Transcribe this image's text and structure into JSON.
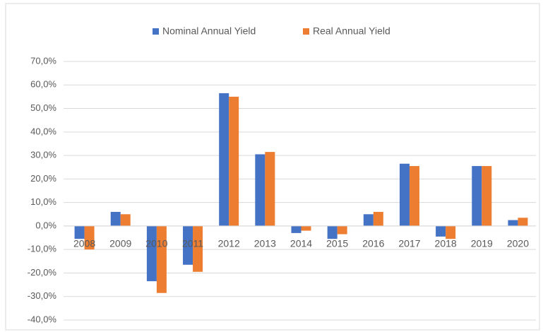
{
  "chart_data": {
    "type": "bar",
    "categories": [
      "2008",
      "2009",
      "2010",
      "2011",
      "2012",
      "2013",
      "2014",
      "2015",
      "2016",
      "2017",
      "2018",
      "2019",
      "2020"
    ],
    "series": [
      {
        "name": "Nominal Annual Yield",
        "color": "#4472c4",
        "values": [
          -5.5,
          6,
          -23.5,
          -16.5,
          56.5,
          30.5,
          -3,
          -5.5,
          5,
          26.5,
          -4.5,
          25.5,
          2.5
        ]
      },
      {
        "name": "Real Annual Yield",
        "color": "#ed7d31",
        "values": [
          -10,
          5,
          -28.5,
          -19.5,
          55,
          31.5,
          -2,
          -3.5,
          6,
          25.5,
          -5.5,
          25.5,
          3.5
        ]
      }
    ],
    "ylim": [
      -40,
      70
    ],
    "yticks": [
      {
        "value": -40,
        "label": "-40,0%"
      },
      {
        "value": -30,
        "label": "-30,0%"
      },
      {
        "value": -20,
        "label": "-20,0%"
      },
      {
        "value": -10,
        "label": "-10,0%"
      },
      {
        "value": 0,
        "label": "0,0%"
      },
      {
        "value": 10,
        "label": "10,0%"
      },
      {
        "value": 20,
        "label": "20,0%"
      },
      {
        "value": 30,
        "label": "30,0%"
      },
      {
        "value": 40,
        "label": "40,0%"
      },
      {
        "value": 50,
        "label": "50,0%"
      },
      {
        "value": 60,
        "label": "60,0%"
      },
      {
        "value": 70,
        "label": "70,0%"
      }
    ],
    "grid": true,
    "legend": "top"
  }
}
